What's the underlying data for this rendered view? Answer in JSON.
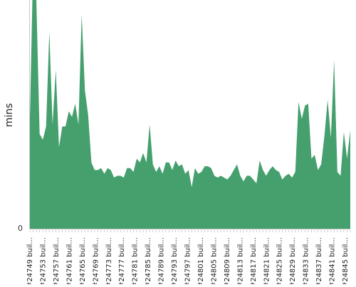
{
  "chart_data": {
    "type": "area",
    "ylabel": "mins",
    "xlabel": "",
    "ylim": [
      0,
      120
    ],
    "y_ticks": [
      0
    ],
    "grid": false,
    "color": "#45a06e",
    "tick_labels": [
      "#24749 buil...",
      "#24753 buil...",
      "#24757 buil...",
      "#24761 buil...",
      "#24765 buil...",
      "#24769 buil...",
      "#24773 buil...",
      "#24777 buil...",
      "#24781 buil...",
      "#24785 buil...",
      "#24789 buil...",
      "#24793 buil...",
      "#24797 buil...",
      "#24801 buil...",
      "#24805 buil...",
      "#24809 buil...",
      "#24813 buil...",
      "#24817 buil...",
      "#24821 buil...",
      "#24825 buil...",
      "#24829 buil...",
      "#24833 buil...",
      "#24837 buil...",
      "#24841 buil...",
      "#24845 buil..."
    ],
    "series": [
      {
        "values": [
          58,
          140,
          120,
          50,
          47,
          54,
          104,
          55,
          84,
          43,
          54,
          54,
          62,
          59,
          66,
          55,
          113,
          73,
          60,
          35,
          31,
          31,
          32,
          29,
          32,
          31,
          27,
          28,
          28,
          27,
          32,
          32,
          30,
          37,
          35,
          40,
          35,
          55,
          34,
          30,
          33,
          29,
          35,
          35,
          31,
          36,
          33,
          34,
          29,
          31,
          22,
          32,
          29,
          30,
          33,
          33,
          32,
          28,
          27,
          28,
          27,
          26,
          28,
          31,
          34,
          28,
          25,
          28,
          28,
          26,
          24,
          36,
          31,
          28,
          31,
          33,
          31,
          30,
          26,
          28,
          29,
          27,
          30,
          67,
          58,
          65,
          66,
          37,
          39,
          31,
          34,
          49,
          68,
          48,
          89,
          30,
          28,
          51,
          37,
          52
        ]
      }
    ]
  }
}
